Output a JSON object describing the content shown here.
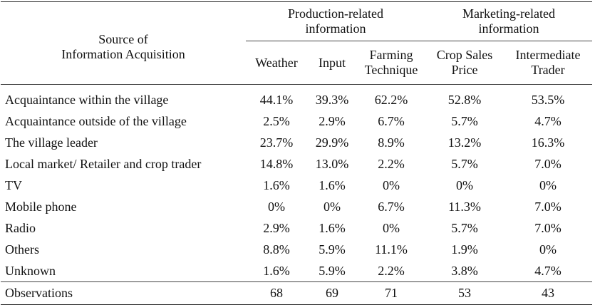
{
  "header": {
    "source_label_line1": "Source of",
    "source_label_line2": "Information Acquisition",
    "groups": [
      {
        "line1": "Production-related",
        "line2": "information"
      },
      {
        "line1": "Marketing-related",
        "line2": "information"
      }
    ],
    "columns": [
      {
        "line1": "Weather",
        "line2": ""
      },
      {
        "line1": "Input",
        "line2": ""
      },
      {
        "line1": "Farming",
        "line2": "Technique"
      },
      {
        "line1": "Crop Sales",
        "line2": "Price"
      },
      {
        "line1": "Intermediate",
        "line2": "Trader"
      }
    ]
  },
  "rows": [
    {
      "label": "Acquaintance within the village",
      "values": [
        "44.1%",
        "39.3%",
        "62.2%",
        "52.8%",
        "53.5%"
      ]
    },
    {
      "label": "Acquaintance outside of the village",
      "values": [
        "2.5%",
        "2.9%",
        "6.7%",
        "5.7%",
        "4.7%"
      ]
    },
    {
      "label": "The village leader",
      "values": [
        "23.7%",
        "29.9%",
        "8.9%",
        "13.2%",
        "16.3%"
      ]
    },
    {
      "label": "Local market/ Retailer and crop trader",
      "values": [
        "14.8%",
        "13.0%",
        "2.2%",
        "5.7%",
        "7.0%"
      ]
    },
    {
      "label": "TV",
      "values": [
        "1.6%",
        "1.6%",
        "0%",
        "0%",
        "0%"
      ]
    },
    {
      "label": "Mobile phone",
      "values": [
        "0%",
        "0%",
        "6.7%",
        "11.3%",
        "7.0%"
      ]
    },
    {
      "label": "Radio",
      "values": [
        "2.9%",
        "1.6%",
        "0%",
        "5.7%",
        "7.0%"
      ]
    },
    {
      "label": "Others",
      "values": [
        "8.8%",
        "5.9%",
        "11.1%",
        "1.9%",
        "0%"
      ]
    },
    {
      "label": "Unknown",
      "values": [
        "1.6%",
        "5.9%",
        "2.2%",
        "3.8%",
        "4.7%"
      ]
    }
  ],
  "observations": {
    "label": "Observations",
    "values": [
      "68",
      "69",
      "71",
      "53",
      "43"
    ]
  }
}
